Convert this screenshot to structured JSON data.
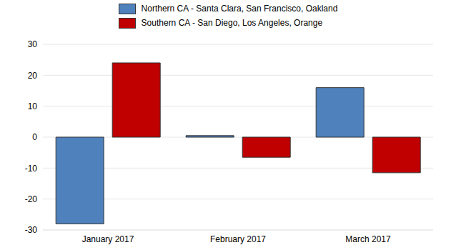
{
  "chart_data": {
    "type": "bar",
    "categories": [
      "January 2017",
      "February 2017",
      "March 2017"
    ],
    "series": [
      {
        "name": "Northern  CA - Santa Clara, San Francisco, Oakland",
        "color": "#4f81bd",
        "values": [
          -28,
          0.5,
          16
        ]
      },
      {
        "name": "Southern  CA - San Diego, Los Angeles, Orange",
        "color": "#c00000",
        "values": [
          24,
          -6.5,
          -11.5
        ]
      }
    ],
    "ylim": [
      -30,
      30
    ],
    "yticks": [
      -30,
      -20,
      -10,
      0,
      10,
      20,
      30
    ],
    "grid": true,
    "legend": "top"
  }
}
